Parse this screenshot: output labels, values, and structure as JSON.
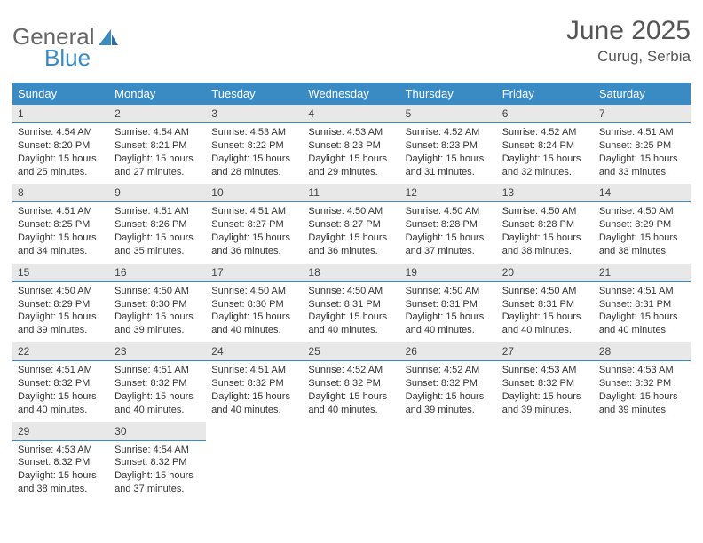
{
  "logo": {
    "word1": "General",
    "word2": "Blue"
  },
  "header": {
    "month": "June 2025",
    "location": "Curug, Serbia"
  },
  "colors": {
    "accent": "#3a8ac4",
    "header_text": "#ffffff",
    "daynum_bg": "#e8e8e8",
    "text": "#333333",
    "title_text": "#555555"
  },
  "weekdays": [
    "Sunday",
    "Monday",
    "Tuesday",
    "Wednesday",
    "Thursday",
    "Friday",
    "Saturday"
  ],
  "labels": {
    "sunrise": "Sunrise:",
    "sunset": "Sunset:",
    "daylight": "Daylight:"
  },
  "days": [
    {
      "n": "1",
      "sr": "4:54 AM",
      "ss": "8:20 PM",
      "dl": "15 hours and 25 minutes."
    },
    {
      "n": "2",
      "sr": "4:54 AM",
      "ss": "8:21 PM",
      "dl": "15 hours and 27 minutes."
    },
    {
      "n": "3",
      "sr": "4:53 AM",
      "ss": "8:22 PM",
      "dl": "15 hours and 28 minutes."
    },
    {
      "n": "4",
      "sr": "4:53 AM",
      "ss": "8:23 PM",
      "dl": "15 hours and 29 minutes."
    },
    {
      "n": "5",
      "sr": "4:52 AM",
      "ss": "8:23 PM",
      "dl": "15 hours and 31 minutes."
    },
    {
      "n": "6",
      "sr": "4:52 AM",
      "ss": "8:24 PM",
      "dl": "15 hours and 32 minutes."
    },
    {
      "n": "7",
      "sr": "4:51 AM",
      "ss": "8:25 PM",
      "dl": "15 hours and 33 minutes."
    },
    {
      "n": "8",
      "sr": "4:51 AM",
      "ss": "8:25 PM",
      "dl": "15 hours and 34 minutes."
    },
    {
      "n": "9",
      "sr": "4:51 AM",
      "ss": "8:26 PM",
      "dl": "15 hours and 35 minutes."
    },
    {
      "n": "10",
      "sr": "4:51 AM",
      "ss": "8:27 PM",
      "dl": "15 hours and 36 minutes."
    },
    {
      "n": "11",
      "sr": "4:50 AM",
      "ss": "8:27 PM",
      "dl": "15 hours and 36 minutes."
    },
    {
      "n": "12",
      "sr": "4:50 AM",
      "ss": "8:28 PM",
      "dl": "15 hours and 37 minutes."
    },
    {
      "n": "13",
      "sr": "4:50 AM",
      "ss": "8:28 PM",
      "dl": "15 hours and 38 minutes."
    },
    {
      "n": "14",
      "sr": "4:50 AM",
      "ss": "8:29 PM",
      "dl": "15 hours and 38 minutes."
    },
    {
      "n": "15",
      "sr": "4:50 AM",
      "ss": "8:29 PM",
      "dl": "15 hours and 39 minutes."
    },
    {
      "n": "16",
      "sr": "4:50 AM",
      "ss": "8:30 PM",
      "dl": "15 hours and 39 minutes."
    },
    {
      "n": "17",
      "sr": "4:50 AM",
      "ss": "8:30 PM",
      "dl": "15 hours and 40 minutes."
    },
    {
      "n": "18",
      "sr": "4:50 AM",
      "ss": "8:31 PM",
      "dl": "15 hours and 40 minutes."
    },
    {
      "n": "19",
      "sr": "4:50 AM",
      "ss": "8:31 PM",
      "dl": "15 hours and 40 minutes."
    },
    {
      "n": "20",
      "sr": "4:50 AM",
      "ss": "8:31 PM",
      "dl": "15 hours and 40 minutes."
    },
    {
      "n": "21",
      "sr": "4:51 AM",
      "ss": "8:31 PM",
      "dl": "15 hours and 40 minutes."
    },
    {
      "n": "22",
      "sr": "4:51 AM",
      "ss": "8:32 PM",
      "dl": "15 hours and 40 minutes."
    },
    {
      "n": "23",
      "sr": "4:51 AM",
      "ss": "8:32 PM",
      "dl": "15 hours and 40 minutes."
    },
    {
      "n": "24",
      "sr": "4:51 AM",
      "ss": "8:32 PM",
      "dl": "15 hours and 40 minutes."
    },
    {
      "n": "25",
      "sr": "4:52 AM",
      "ss": "8:32 PM",
      "dl": "15 hours and 40 minutes."
    },
    {
      "n": "26",
      "sr": "4:52 AM",
      "ss": "8:32 PM",
      "dl": "15 hours and 39 minutes."
    },
    {
      "n": "27",
      "sr": "4:53 AM",
      "ss": "8:32 PM",
      "dl": "15 hours and 39 minutes."
    },
    {
      "n": "28",
      "sr": "4:53 AM",
      "ss": "8:32 PM",
      "dl": "15 hours and 39 minutes."
    },
    {
      "n": "29",
      "sr": "4:53 AM",
      "ss": "8:32 PM",
      "dl": "15 hours and 38 minutes."
    },
    {
      "n": "30",
      "sr": "4:54 AM",
      "ss": "8:32 PM",
      "dl": "15 hours and 37 minutes."
    }
  ],
  "typography": {
    "title_fontsize": 30,
    "loc_fontsize": 17,
    "th_fontsize": 13,
    "cell_fontsize": 11
  }
}
